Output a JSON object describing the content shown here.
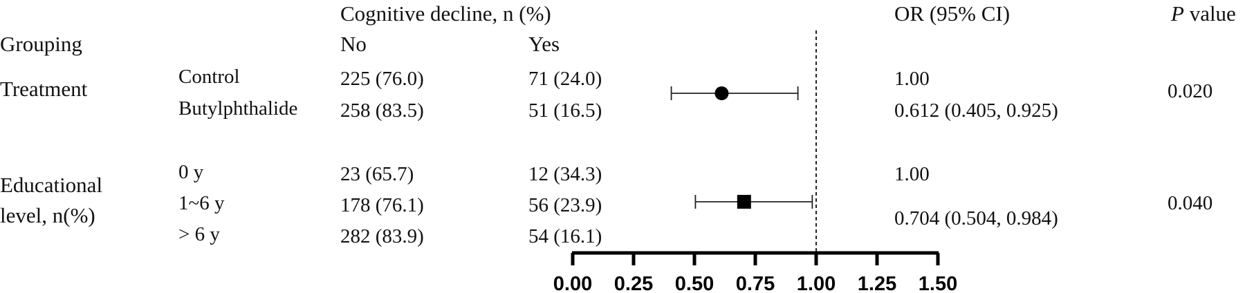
{
  "headers": {
    "outcome": "Cognitive decline, n (%)",
    "grouping": "Grouping",
    "no": "No",
    "yes": "Yes",
    "or": "OR (95% CI)",
    "p_italic": "P",
    "p_rest": " value"
  },
  "groups": [
    {
      "label": "Treatment",
      "p_value": "0.020",
      "rows": [
        {
          "level": "Control",
          "no": "225 (76.0)",
          "yes": "71 (24.0)",
          "or": "1.00"
        },
        {
          "level": "Butylphthalide",
          "no": "258 (83.5)",
          "yes": "51 (16.5)",
          "or": "0.612 (0.405, 0.925)"
        }
      ]
    },
    {
      "label_line1": "Educational",
      "label_line2": "level, n(%)",
      "p_value": "0.040",
      "rows": [
        {
          "level": "0 y",
          "no": "23 (65.7)",
          "yes": "12 (34.3)",
          "or": "1.00"
        },
        {
          "level": "1~6 y",
          "no": "178 (76.1)",
          "yes": "56 (23.9)"
        },
        {
          "level": "> 6 y",
          "no": "282 (83.9)",
          "yes": "54 (16.1)"
        }
      ],
      "or_extra": "0.704 (0.504, 0.984)"
    }
  ],
  "chart_data": {
    "type": "scatter",
    "subtype": "forest",
    "x_ticks": [
      "0.00",
      "0.25",
      "0.50",
      "0.75",
      "1.00",
      "1.25",
      "1.50"
    ],
    "xlim": [
      0,
      1.5
    ],
    "reference_line": 1.0,
    "series": [
      {
        "marker": "circle",
        "x": 0.612,
        "ci": [
          0.405,
          0.925
        ]
      },
      {
        "marker": "square",
        "x": 0.704,
        "ci": [
          0.504,
          0.984
        ]
      }
    ]
  }
}
